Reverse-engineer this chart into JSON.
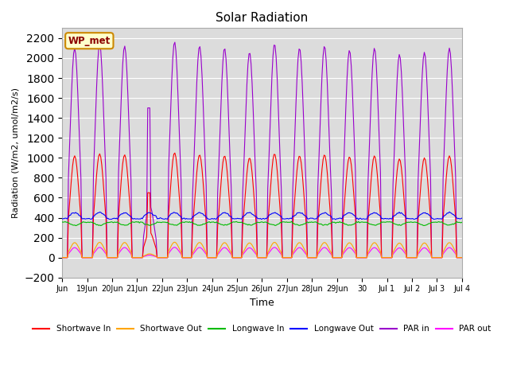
{
  "title": "Solar Radiation",
  "xlabel": "Time",
  "ylabel": "Radiation (W/m2, umol/m2/s)",
  "ylim": [
    -200,
    2300
  ],
  "yticks": [
    -200,
    0,
    200,
    400,
    600,
    800,
    1000,
    1200,
    1400,
    1600,
    1800,
    2000,
    2200
  ],
  "background_color": "#dcdcdc",
  "legend_label": "WP_met",
  "series_order": [
    "par_in",
    "par_out",
    "shortwave_in",
    "longwave_out",
    "shortwave_out",
    "longwave_in"
  ],
  "series": {
    "shortwave_in": {
      "label": "Shortwave In",
      "color": "#ff0000"
    },
    "shortwave_out": {
      "label": "Shortwave Out",
      "color": "#ffa500"
    },
    "longwave_in": {
      "label": "Longwave In",
      "color": "#00bb00"
    },
    "longwave_out": {
      "label": "Longwave Out",
      "color": "#0000ff"
    },
    "par_in": {
      "label": "PAR in",
      "color": "#9900cc"
    },
    "par_out": {
      "label": "PAR out",
      "color": "#ff00ff"
    }
  },
  "xtick_positions": [
    0,
    1,
    2,
    3,
    4,
    5,
    6,
    7,
    8,
    9,
    10,
    11,
    12,
    13,
    14,
    15,
    16
  ],
  "xtick_labels": [
    "Jun",
    "19Jun",
    "20Jun",
    "21Jun",
    "22Jun",
    "23Jun",
    "24Jun",
    "25Jun",
    "26Jun",
    "27Jun",
    "28Jun",
    "29Jun",
    "30",
    "Jul 1",
    "Jul 2",
    "Jul 3",
    "Jul 4"
  ],
  "num_days": 16,
  "sigma": 0.18
}
